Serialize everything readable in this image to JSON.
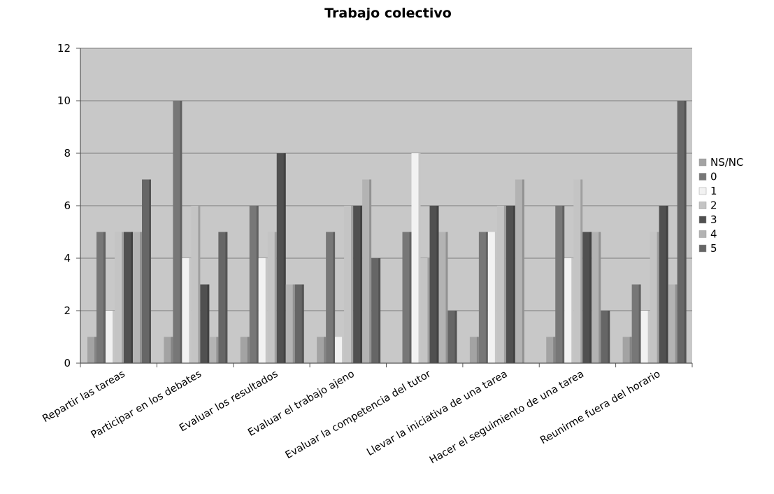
{
  "chart_data": {
    "type": "bar",
    "title": "Trabajo colectivo",
    "xlabel": "",
    "ylabel": "",
    "ylim": [
      0,
      12
    ],
    "yticks": [
      "0",
      "2",
      "4",
      "6",
      "8",
      "10",
      "12"
    ],
    "grid": true,
    "legend_position": "right",
    "categories": [
      "Repartir las tareas",
      "Participar en los debates",
      "Evaluar los resultados",
      "Evaluar el trabajo ajeno",
      "Evaluar la competencia del tutor",
      "Llevar la iniciativa de una tarea",
      "Hacer el seguimiento de una tarea",
      "Reunirme fuera del horario"
    ],
    "series": [
      {
        "name": "NS/NC",
        "color": "#a3a3a3",
        "values": [
          1,
          1,
          1,
          1,
          0,
          1,
          1,
          1
        ]
      },
      {
        "name": "0",
        "color": "#777777",
        "values": [
          5,
          10,
          6,
          5,
          5,
          5,
          6,
          3
        ]
      },
      {
        "name": "1",
        "color": "#f2f2f2",
        "values": [
          2,
          4,
          4,
          1,
          8,
          5,
          4,
          2
        ]
      },
      {
        "name": "2",
        "color": "#c4c4c4",
        "values": [
          5,
          6,
          5,
          6,
          4,
          6,
          7,
          5
        ]
      },
      {
        "name": "3",
        "color": "#505050",
        "values": [
          5,
          3,
          8,
          6,
          6,
          6,
          5,
          6
        ]
      },
      {
        "name": "4",
        "color": "#b3b3b3",
        "values": [
          5,
          1,
          3,
          7,
          5,
          7,
          5,
          3
        ]
      },
      {
        "name": "5",
        "color": "#666666",
        "values": [
          7,
          5,
          3,
          4,
          2,
          0,
          2,
          10
        ]
      }
    ],
    "plot_background": "#c8c8c8"
  }
}
